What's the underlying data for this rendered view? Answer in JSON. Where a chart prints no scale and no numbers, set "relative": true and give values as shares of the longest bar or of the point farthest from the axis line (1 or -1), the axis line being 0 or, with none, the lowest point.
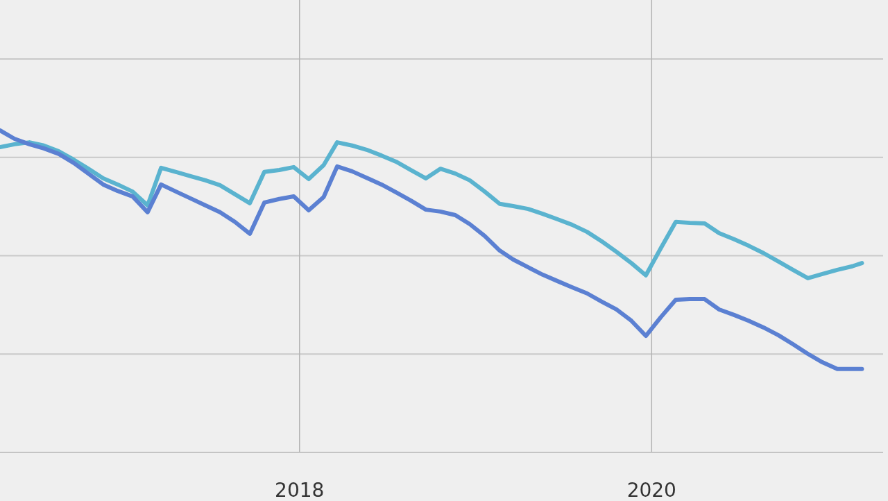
{
  "chart_data": {
    "type": "line",
    "relative": true,
    "grid": true,
    "line_style": "solid",
    "x": [
      "2016-04-20",
      "2016-05-20",
      "2016-06-20",
      "2016-07-20",
      "2016-08-20",
      "2016-09-20",
      "2016-10-20",
      "2016-11-20",
      "2016-12-20",
      "2017-01-20",
      "2017-02-20",
      "2017-03-20",
      "2017-04-20",
      "2017-05-20",
      "2017-06-20",
      "2017-07-20",
      "2017-08-20",
      "2017-09-20",
      "2017-10-20",
      "2017-11-20",
      "2017-12-20",
      "2018-01-20",
      "2018-02-20",
      "2018-03-20",
      "2018-04-20",
      "2018-05-20",
      "2018-06-20",
      "2018-07-20",
      "2018-08-20",
      "2018-09-20",
      "2018-10-20",
      "2018-11-20",
      "2018-12-20",
      "2019-01-20",
      "2019-02-20",
      "2019-03-20",
      "2019-04-20",
      "2019-05-20",
      "2019-06-20",
      "2019-07-20",
      "2019-08-20",
      "2019-09-20",
      "2019-10-20",
      "2019-11-20",
      "2019-12-20",
      "2020-01-20",
      "2020-02-20",
      "2020-03-20",
      "2020-04-20",
      "2020-05-20",
      "2020-06-20",
      "2020-07-20",
      "2020-08-20",
      "2020-09-20",
      "2020-10-20",
      "2020-11-20",
      "2020-12-20",
      "2021-01-20",
      "2021-02-20",
      "2021-03-12"
    ],
    "series": [
      {
        "color": "#5ab3cf",
        "values": [
          0.948,
          0.957,
          0.963,
          0.953,
          0.935,
          0.909,
          0.881,
          0.851,
          0.832,
          0.81,
          0.767,
          0.884,
          0.871,
          0.858,
          0.845,
          0.83,
          0.802,
          0.774,
          0.871,
          0.877,
          0.886,
          0.849,
          0.892,
          0.963,
          0.953,
          0.94,
          0.922,
          0.903,
          0.877,
          0.851,
          0.881,
          0.866,
          0.845,
          0.81,
          0.772,
          0.765,
          0.756,
          0.741,
          0.724,
          0.707,
          0.685,
          0.655,
          0.623,
          0.588,
          0.55,
          0.634,
          0.716,
          0.713,
          0.711,
          0.681,
          0.662,
          0.642,
          0.619,
          0.593,
          0.567,
          0.541,
          0.554,
          0.567,
          0.578,
          0.588
        ]
      },
      {
        "color": "#5b80d2",
        "values": [
          1.0,
          0.974,
          0.957,
          0.944,
          0.927,
          0.899,
          0.866,
          0.832,
          0.812,
          0.795,
          0.746,
          0.832,
          0.81,
          0.789,
          0.767,
          0.746,
          0.716,
          0.679,
          0.776,
          0.787,
          0.795,
          0.752,
          0.793,
          0.888,
          0.873,
          0.853,
          0.832,
          0.808,
          0.782,
          0.754,
          0.748,
          0.737,
          0.709,
          0.672,
          0.627,
          0.599,
          0.575,
          0.552,
          0.532,
          0.513,
          0.494,
          0.468,
          0.444,
          0.409,
          0.362,
          0.42,
          0.474,
          0.476,
          0.476,
          0.444,
          0.427,
          0.409,
          0.388,
          0.364,
          0.336,
          0.306,
          0.28,
          0.259,
          0.259,
          0.259
        ]
      }
    ],
    "xlim": [
      "2016-04-20",
      "2021-04-25"
    ],
    "xticks": [
      "2018",
      "2020"
    ]
  }
}
